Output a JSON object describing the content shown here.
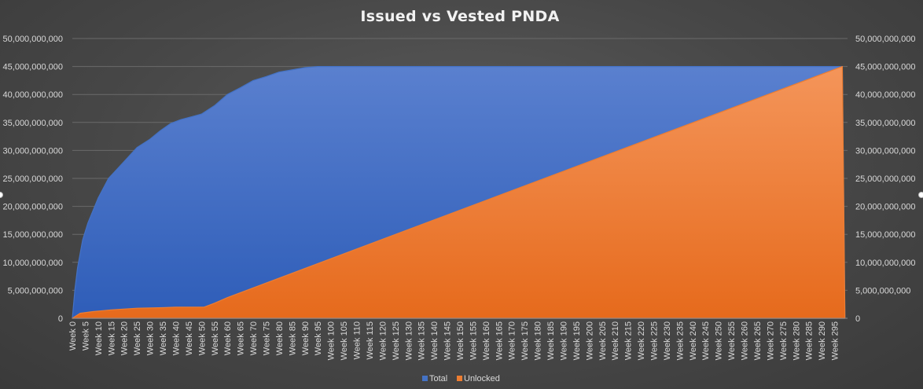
{
  "chart_data": {
    "type": "area",
    "title": "Issued vs Vested PNDA",
    "y_ticks": [
      "0",
      "5,000,000,000",
      "10,000,000,000",
      "15,000,000,000",
      "20,000,000,000",
      "25,000,000,000",
      "30,000,000,000",
      "35,000,000,000",
      "40,000,000,000",
      "45,000,000,000",
      "50,000,000,000"
    ],
    "y2_ticks": [
      "0",
      "5,000,000,000",
      "10,000,000,000",
      "15,000,000,000",
      "20,000,000,000",
      "25,000,000,000",
      "30,000,000,000",
      "35,000,000,000",
      "40,000,000,000",
      "45,000,000,000",
      "50,000,000,000"
    ],
    "ylim": [
      0,
      50000000000
    ],
    "x_range": [
      0,
      300
    ],
    "x_tick_step": 5,
    "x_tick_prefix": "Week ",
    "grid": true,
    "legend_position": "bottom",
    "series": [
      {
        "name": "Total",
        "color": "#4472c4",
        "points": [
          [
            0,
            0
          ],
          [
            1,
            5200000000
          ],
          [
            2,
            9000000000
          ],
          [
            4,
            14000000000
          ],
          [
            6,
            17000000000
          ],
          [
            10,
            21500000000
          ],
          [
            14,
            25000000000
          ],
          [
            18,
            27000000000
          ],
          [
            21,
            28500000000
          ],
          [
            25,
            30500000000
          ],
          [
            30,
            32000000000
          ],
          [
            34,
            33500000000
          ],
          [
            38,
            34800000000
          ],
          [
            42,
            35500000000
          ],
          [
            46,
            36000000000
          ],
          [
            50,
            36500000000
          ],
          [
            55,
            38000000000
          ],
          [
            60,
            40000000000
          ],
          [
            65,
            41200000000
          ],
          [
            70,
            42500000000
          ],
          [
            75,
            43200000000
          ],
          [
            80,
            44000000000
          ],
          [
            85,
            44400000000
          ],
          [
            90,
            44800000000
          ],
          [
            95,
            45000000000
          ],
          [
            100,
            45000000000
          ],
          [
            298,
            45000000000
          ],
          [
            299,
            0
          ]
        ]
      },
      {
        "name": "Unlocked",
        "color": "#ed7d31",
        "points": [
          [
            0,
            0
          ],
          [
            3,
            900000000
          ],
          [
            8,
            1200000000
          ],
          [
            15,
            1500000000
          ],
          [
            25,
            1800000000
          ],
          [
            35,
            1900000000
          ],
          [
            40,
            2000000000
          ],
          [
            51,
            2000000000
          ],
          [
            55,
            2700000000
          ],
          [
            60,
            3700000000
          ],
          [
            298,
            45000000000
          ],
          [
            299,
            0
          ]
        ]
      }
    ]
  }
}
